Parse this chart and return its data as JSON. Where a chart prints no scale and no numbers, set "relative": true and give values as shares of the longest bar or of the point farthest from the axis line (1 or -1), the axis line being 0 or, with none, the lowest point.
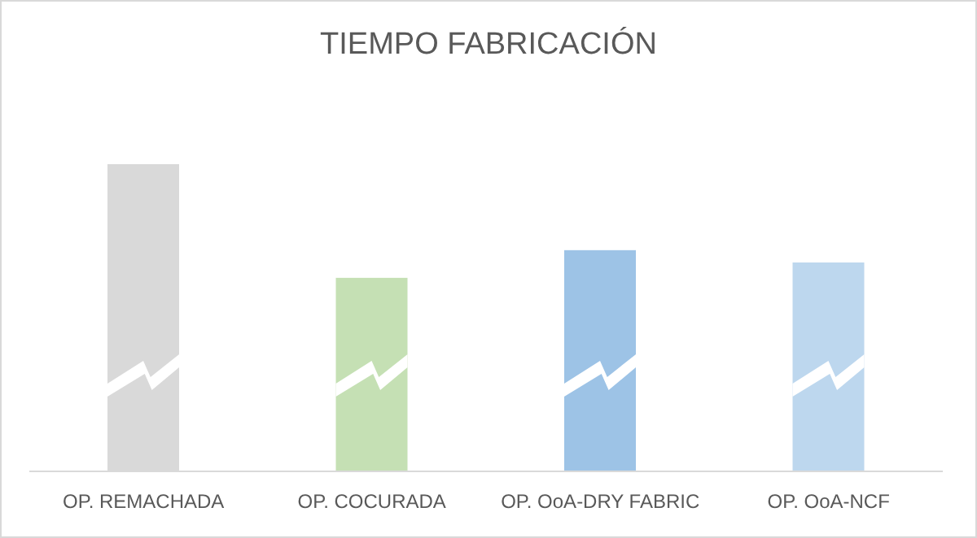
{
  "chart_data": {
    "type": "bar",
    "title": "TIEMPO FABRICACIÓN",
    "categories": [
      "OP. REMACHADA",
      "OP. COCURADA",
      "OP. OoA-DRY FABRIC",
      "OP. OoA-NCF"
    ],
    "values": [
      1,
      0.63,
      0.72,
      0.68
    ],
    "colors": [
      "#d9d9d9",
      "#c5e0b4",
      "#9dc3e6",
      "#bdd7ee"
    ],
    "relative": true,
    "grid": false,
    "legend": false
  }
}
